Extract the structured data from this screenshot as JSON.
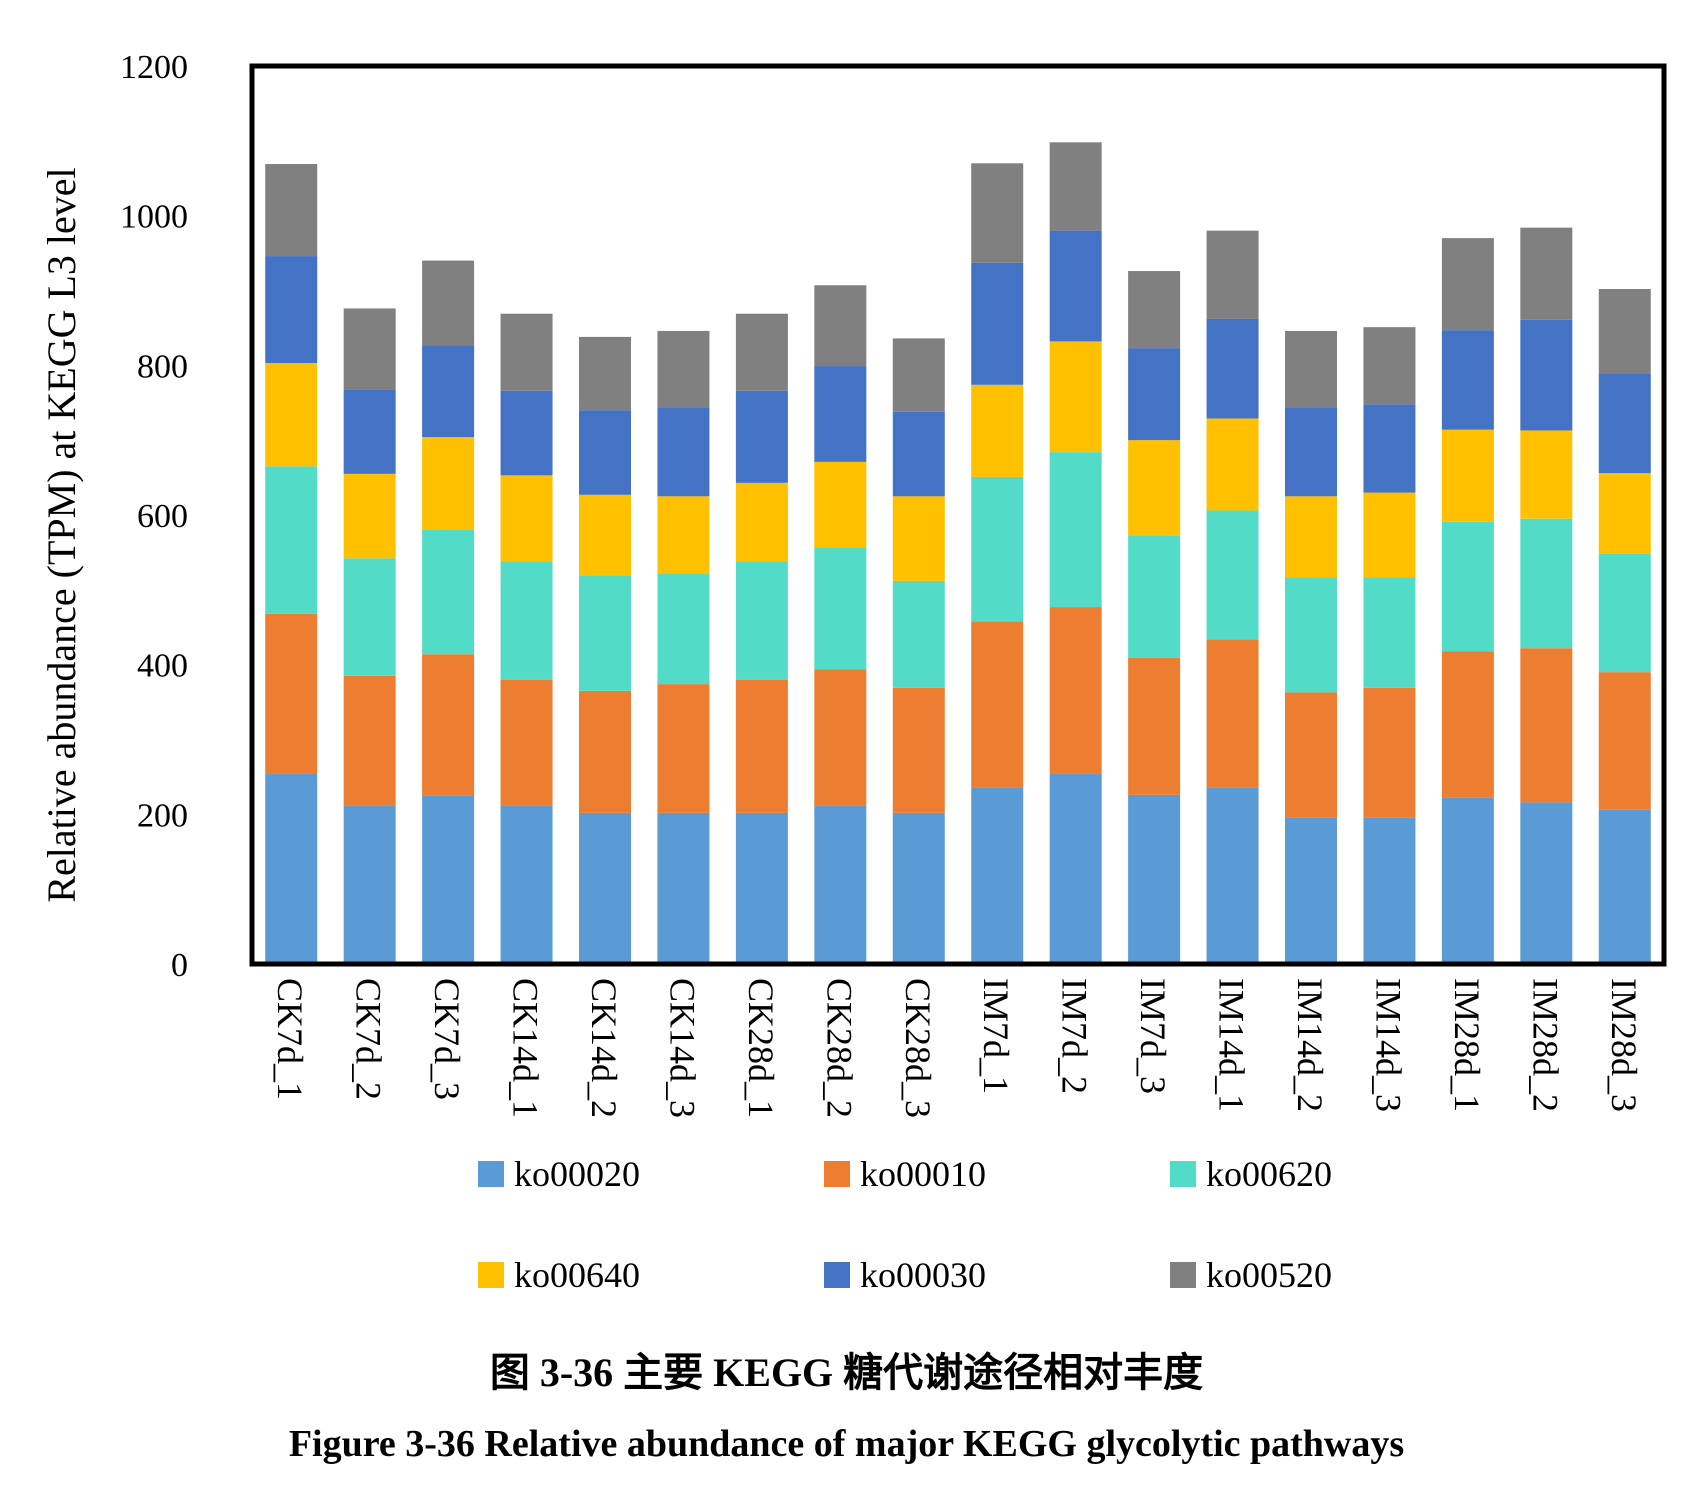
{
  "chart_data": {
    "type": "bar",
    "stacked": true,
    "title": "",
    "xlabel": "",
    "ylabel": "Relative abundance (TPM) at KEGG L3 level",
    "ylim": [
      0,
      1200
    ],
    "yticks": [
      "0",
      "200",
      "400",
      "600",
      "800",
      "1000",
      "1200"
    ],
    "grid": false,
    "legend_position": "bottom",
    "categories": [
      "CK7d_1",
      "CK7d_2",
      "CK7d_3",
      "CK14d_1",
      "CK14d_2",
      "CK14d_3",
      "CK28d_1",
      "CK28d_2",
      "CK28d_3",
      "IM7d_1",
      "IM7d_2",
      "IM7d_3",
      "IM14d_1",
      "IM14d_2",
      "IM14d_3",
      "IM28d_1",
      "IM28d_2",
      "IM28d_3"
    ],
    "series": [
      {
        "name": "ko00020",
        "color": "#5B9BD5",
        "values": [
          255,
          212,
          225,
          212,
          202,
          202,
          202,
          212,
          202,
          236,
          255,
          226,
          236,
          196,
          196,
          222,
          216,
          206
        ]
      },
      {
        "name": "ko00010",
        "color": "#ED7D31",
        "values": [
          213,
          173,
          189,
          168,
          163,
          172,
          178,
          182,
          167,
          222,
          222,
          183,
          198,
          167,
          173,
          196,
          206,
          184
        ]
      },
      {
        "name": "ko00620",
        "color": "#52DCC8",
        "values": [
          197,
          157,
          167,
          158,
          154,
          148,
          158,
          163,
          143,
          193,
          207,
          163,
          172,
          154,
          148,
          173,
          173,
          158
        ]
      },
      {
        "name": "ko00640",
        "color": "#FFC000",
        "values": [
          138,
          113,
          123,
          115,
          108,
          103,
          105,
          114,
          113,
          123,
          148,
          128,
          123,
          108,
          113,
          123,
          118,
          108
        ]
      },
      {
        "name": "ko00030",
        "color": "#4472C4",
        "values": [
          143,
          113,
          123,
          113,
          113,
          118,
          123,
          128,
          113,
          163,
          148,
          123,
          133,
          118,
          118,
          133,
          148,
          133
        ]
      },
      {
        "name": "ko00520",
        "color": "#808080",
        "values": [
          123,
          108,
          113,
          103,
          98,
          103,
          103,
          108,
          98,
          133,
          118,
          103,
          118,
          103,
          103,
          123,
          123,
          113
        ]
      }
    ]
  },
  "captions": {
    "chinese": "图 3-36 主要 KEGG 糖代谢途径相对丰度",
    "english": "Figure 3-36 Relative abundance of major KEGG glycolytic pathways"
  }
}
